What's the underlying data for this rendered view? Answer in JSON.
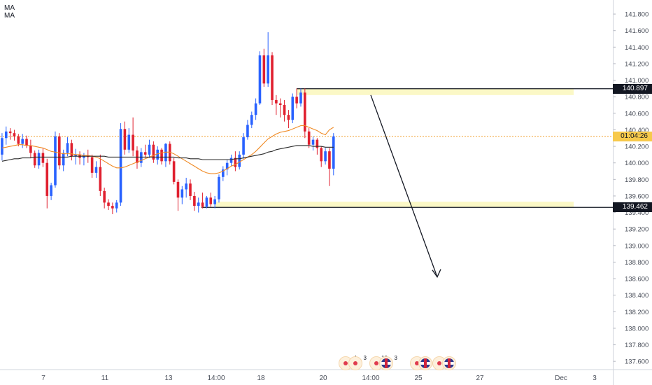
{
  "legend": {
    "line1": "MA",
    "line2": "MA"
  },
  "colors": {
    "up": "#2962ff",
    "down": "#e0202f",
    "ma_fast": "#f08a24",
    "ma_slow": "#2a2a2a",
    "zone": "#fbf8c6",
    "arrow": "#131722",
    "axis_text": "#4a4f5a",
    "grid": "#e6e8ed"
  },
  "price_axis": {
    "ticks": [
      "141.800",
      "141.600",
      "141.400",
      "141.200",
      "141.000",
      "140.800",
      "140.600",
      "140.400",
      "140.200",
      "140.000",
      "139.800",
      "139.600",
      "139.400",
      "139.200",
      "139.000",
      "138.800",
      "138.600",
      "138.400",
      "138.200",
      "138.000",
      "137.800",
      "137.600"
    ],
    "tick_values": [
      141.8,
      141.6,
      141.4,
      141.2,
      141.0,
      140.8,
      140.6,
      140.4,
      140.2,
      140.0,
      139.8,
      139.6,
      139.4,
      139.2,
      139.0,
      138.8,
      138.6,
      138.4,
      138.2,
      138.0,
      137.8,
      137.6
    ],
    "min": 137.5,
    "max": 141.97,
    "resistance_tag": "140.897",
    "resistance_value": 140.897,
    "current_tag": "01:04:26",
    "current_value": 140.32,
    "support_tag": "139.462",
    "support_value": 139.462
  },
  "time_axis": {
    "labels": [
      "7",
      "11",
      "13",
      "14:00",
      "18",
      "20",
      "14:00",
      "25",
      "27",
      "Dec",
      "3"
    ]
  },
  "events": [
    {
      "count": "4"
    },
    {
      "count": "3"
    },
    {
      "count": "10"
    },
    {
      "count": "3"
    }
  ],
  "chart_data": {
    "type": "candlestick",
    "candles": [
      [
        140.1,
        140.36,
        140.03,
        140.3
      ],
      [
        140.3,
        140.44,
        140.22,
        140.38
      ],
      [
        140.38,
        140.42,
        140.28,
        140.36
      ],
      [
        140.36,
        140.4,
        140.27,
        140.32
      ],
      [
        140.32,
        140.35,
        140.2,
        140.23
      ],
      [
        140.23,
        140.35,
        140.18,
        140.29
      ],
      [
        140.29,
        140.33,
        140.18,
        140.21
      ],
      [
        140.21,
        140.28,
        140.06,
        140.12
      ],
      [
        140.12,
        140.15,
        139.94,
        139.97
      ],
      [
        139.97,
        140.16,
        139.93,
        140.12
      ],
      [
        140.12,
        140.18,
        139.95,
        140.0
      ],
      [
        140.0,
        140.05,
        139.45,
        139.6
      ],
      [
        139.6,
        139.76,
        139.55,
        139.73
      ],
      [
        139.73,
        140.38,
        139.7,
        140.32
      ],
      [
        140.32,
        140.36,
        139.92,
        139.97
      ],
      [
        139.97,
        140.16,
        139.9,
        140.12
      ],
      [
        140.12,
        140.31,
        140.08,
        140.24
      ],
      [
        140.24,
        140.28,
        140.03,
        140.08
      ],
      [
        140.08,
        140.17,
        139.98,
        140.1
      ],
      [
        140.1,
        140.14,
        139.98,
        140.06
      ],
      [
        140.06,
        140.12,
        139.97,
        140.09
      ],
      [
        140.09,
        140.16,
        140.0,
        140.07
      ],
      [
        140.07,
        140.1,
        139.82,
        139.88
      ],
      [
        139.88,
        140.02,
        139.82,
        139.95
      ],
      [
        139.95,
        140.1,
        139.6,
        139.66
      ],
      [
        139.66,
        139.7,
        139.45,
        139.52
      ],
      [
        139.52,
        139.56,
        139.43,
        139.48
      ],
      [
        139.48,
        139.52,
        139.38,
        139.45
      ],
      [
        139.45,
        139.55,
        139.4,
        139.52
      ],
      [
        139.52,
        140.48,
        139.48,
        140.41
      ],
      [
        140.41,
        140.5,
        140.1,
        140.16
      ],
      [
        140.16,
        140.42,
        140.12,
        140.34
      ],
      [
        140.34,
        140.55,
        140.08,
        140.15
      ],
      [
        140.15,
        140.2,
        139.93,
        140.0
      ],
      [
        140.0,
        140.18,
        139.95,
        140.13
      ],
      [
        140.13,
        140.22,
        140.06,
        140.1
      ],
      [
        140.1,
        140.28,
        140.06,
        140.22
      ],
      [
        140.22,
        140.26,
        140.0,
        140.04
      ],
      [
        140.04,
        140.2,
        139.98,
        140.16
      ],
      [
        140.16,
        140.18,
        139.98,
        140.02
      ],
      [
        140.02,
        140.24,
        139.95,
        140.23
      ],
      [
        140.23,
        140.26,
        139.98,
        140.02
      ],
      [
        140.02,
        140.06,
        139.74,
        139.77
      ],
      [
        139.77,
        139.8,
        139.42,
        139.58
      ],
      [
        139.58,
        139.72,
        139.5,
        139.68
      ],
      [
        139.68,
        139.82,
        139.58,
        139.75
      ],
      [
        139.75,
        139.8,
        139.55,
        139.6
      ],
      [
        139.6,
        139.65,
        139.42,
        139.48
      ],
      [
        139.48,
        139.58,
        139.4,
        139.52
      ],
      [
        139.52,
        139.64,
        139.45,
        139.47
      ],
      [
        139.47,
        139.6,
        139.45,
        139.58
      ],
      [
        139.58,
        139.64,
        139.47,
        139.5
      ],
      [
        139.5,
        139.6,
        139.45,
        139.56
      ],
      [
        139.56,
        139.86,
        139.52,
        139.83
      ],
      [
        139.83,
        139.96,
        139.78,
        139.92
      ],
      [
        139.92,
        140.04,
        139.85,
        140.0
      ],
      [
        140.0,
        140.1,
        139.96,
        140.06
      ],
      [
        140.06,
        140.14,
        139.9,
        139.95
      ],
      [
        139.95,
        140.14,
        139.92,
        140.1
      ],
      [
        140.1,
        140.36,
        140.05,
        140.31
      ],
      [
        140.31,
        140.52,
        140.28,
        140.46
      ],
      [
        140.46,
        140.62,
        140.42,
        140.58
      ],
      [
        140.58,
        140.78,
        140.52,
        140.72
      ],
      [
        140.72,
        141.35,
        140.7,
        141.3
      ],
      [
        141.3,
        141.38,
        140.92,
        140.96
      ],
      [
        140.96,
        141.58,
        140.92,
        141.3
      ],
      [
        141.3,
        141.34,
        140.7,
        140.76
      ],
      [
        140.76,
        140.82,
        140.58,
        140.72
      ],
      [
        140.72,
        140.78,
        140.55,
        140.7
      ],
      [
        140.7,
        140.76,
        140.5,
        140.58
      ],
      [
        140.58,
        140.64,
        140.42,
        140.52
      ],
      [
        140.52,
        140.84,
        140.48,
        140.8
      ],
      [
        140.8,
        140.9,
        140.66,
        140.72
      ],
      [
        140.72,
        140.9,
        140.68,
        140.85
      ],
      [
        140.85,
        140.9,
        140.3,
        140.38
      ],
      [
        140.38,
        140.42,
        140.18,
        140.22
      ],
      [
        140.22,
        140.32,
        140.15,
        140.28
      ],
      [
        140.28,
        140.3,
        140.1,
        140.18
      ],
      [
        140.18,
        140.2,
        139.95,
        140.02
      ],
      [
        140.02,
        140.18,
        139.98,
        140.14
      ],
      [
        140.14,
        140.18,
        139.72,
        139.93
      ],
      [
        139.93,
        140.36,
        139.85,
        140.32
      ]
    ],
    "ma_fast": [
      140.18,
      140.19,
      140.2,
      140.21,
      140.22,
      140.22,
      140.21,
      140.21,
      140.2,
      140.19,
      140.18,
      140.16,
      140.14,
      140.13,
      140.12,
      140.11,
      140.11,
      140.11,
      140.1,
      140.1,
      140.09,
      140.09,
      140.08,
      140.07,
      140.05,
      140.02,
      139.99,
      139.96,
      139.94,
      139.94,
      139.95,
      139.97,
      139.99,
      140.01,
      140.03,
      140.05,
      140.07,
      140.09,
      140.11,
      140.12,
      140.13,
      140.13,
      140.11,
      140.08,
      140.05,
      140.02,
      139.99,
      139.96,
      139.93,
      139.9,
      139.88,
      139.87,
      139.87,
      139.88,
      139.9,
      139.93,
      139.96,
      139.98,
      140.01,
      140.04,
      140.07,
      140.1,
      140.14,
      140.19,
      140.24,
      140.29,
      140.32,
      140.35,
      140.37,
      140.38,
      140.39,
      140.41,
      140.43,
      140.45,
      140.45,
      140.43,
      140.41,
      140.39,
      140.36,
      140.34,
      140.4,
      140.43
    ],
    "ma_slow": [
      140.02,
      140.03,
      140.04,
      140.05,
      140.05,
      140.06,
      140.06,
      140.06,
      140.07,
      140.07,
      140.07,
      140.07,
      140.07,
      140.07,
      140.07,
      140.07,
      140.07,
      140.08,
      140.08,
      140.08,
      140.08,
      140.08,
      140.08,
      140.08,
      140.08,
      140.08,
      140.07,
      140.07,
      140.07,
      140.07,
      140.07,
      140.07,
      140.07,
      140.07,
      140.07,
      140.07,
      140.07,
      140.07,
      140.07,
      140.07,
      140.07,
      140.07,
      140.07,
      140.06,
      140.06,
      140.06,
      140.05,
      140.05,
      140.05,
      140.04,
      140.04,
      140.04,
      140.04,
      140.04,
      140.04,
      140.04,
      140.04,
      140.05,
      140.05,
      140.06,
      140.07,
      140.08,
      140.09,
      140.1,
      140.11,
      140.13,
      140.14,
      140.16,
      140.17,
      140.18,
      140.19,
      140.2,
      140.21,
      140.21,
      140.21,
      140.21,
      140.2,
      140.2,
      140.2,
      140.19,
      140.19,
      140.19
    ],
    "resistance_zone": [
      140.82,
      140.9
    ],
    "support_zone": [
      139.462,
      139.53
    ],
    "projection": {
      "from": 140.82,
      "to": 138.62
    }
  }
}
